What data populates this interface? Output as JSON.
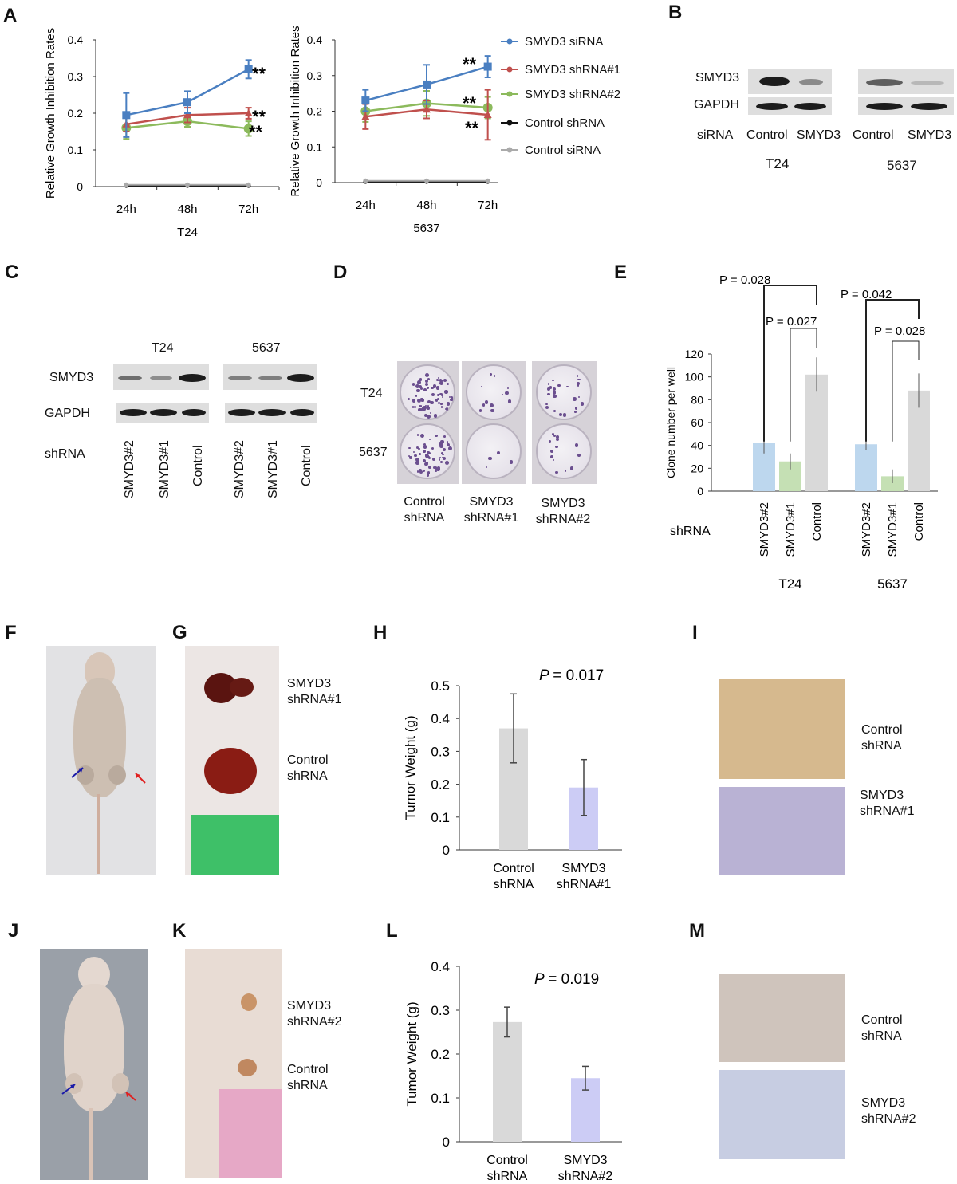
{
  "panel_letters": [
    "A",
    "B",
    "C",
    "D",
    "E",
    "F",
    "G",
    "H",
    "I",
    "J",
    "K",
    "L",
    "M"
  ],
  "chart_data": [
    {
      "id": "A_T24",
      "type": "line",
      "ylabel": "Relative Growth Inhibition Rates",
      "xlabel": "T24",
      "categories": [
        "24h",
        "48h",
        "72h"
      ],
      "ylim": [
        0,
        0.4
      ],
      "yticks": [
        "0",
        "0.1",
        "0.2",
        "0.3",
        "0.4"
      ],
      "series": [
        {
          "name": "SMYD3 siRNA",
          "values": [
            0.195,
            0.23,
            0.32
          ],
          "err": [
            0.06,
            0.03,
            0.025
          ],
          "color": "#4a7fc1"
        },
        {
          "name": "SMYD3 shRNA#1",
          "values": [
            0.17,
            0.195,
            0.2
          ],
          "err": [
            0.02,
            0.02,
            0.015
          ],
          "color": "#c0504d"
        },
        {
          "name": "SMYD3 shRNA#2",
          "values": [
            0.16,
            0.178,
            0.158
          ],
          "err": [
            0.03,
            0.015,
            0.02
          ],
          "color": "#8cba5c"
        },
        {
          "name": "Control shRNA",
          "values": [
            0.003,
            0.003,
            0.003
          ],
          "err": [
            0,
            0,
            0
          ],
          "color": "#111111"
        },
        {
          "name": "Control siRNA",
          "values": [
            0.005,
            0.005,
            0.005
          ],
          "err": [
            0,
            0,
            0
          ],
          "color": "#aaaaaa"
        }
      ],
      "annotations": [
        "**",
        "**",
        "**"
      ]
    },
    {
      "id": "A_5637",
      "type": "line",
      "ylabel": "Relative Growth Inhibition Rates",
      "xlabel": "5637",
      "categories": [
        "24h",
        "48h",
        "72h"
      ],
      "ylim": [
        0,
        0.4
      ],
      "yticks": [
        "0",
        "0.1",
        "0.2",
        "0.3",
        "0.4"
      ],
      "series": [
        {
          "name": "SMYD3 siRNA",
          "values": [
            0.23,
            0.275,
            0.325
          ],
          "err": [
            0.03,
            0.055,
            0.03
          ],
          "color": "#4a7fc1"
        },
        {
          "name": "SMYD3 shRNA#1",
          "values": [
            0.185,
            0.205,
            0.19
          ],
          "err": [
            0.035,
            0.025,
            0.07
          ],
          "color": "#c0504d"
        },
        {
          "name": "SMYD3 shRNA#2",
          "values": [
            0.2,
            0.222,
            0.21
          ],
          "err": [
            0.03,
            0.035,
            0.03
          ],
          "color": "#8cba5c"
        },
        {
          "name": "Control shRNA",
          "values": [
            0.003,
            0.003,
            0.003
          ],
          "err": [
            0,
            0,
            0
          ],
          "color": "#111111"
        },
        {
          "name": "Control siRNA",
          "values": [
            0.005,
            0.005,
            0.005
          ],
          "err": [
            0,
            0,
            0
          ],
          "color": "#aaaaaa"
        }
      ],
      "annotations": [
        "**",
        "**",
        "**"
      ]
    },
    {
      "id": "E",
      "type": "bar",
      "ylabel": "Clone number per well",
      "ylim": [
        0,
        120
      ],
      "yticks": [
        "0",
        "20",
        "40",
        "60",
        "80",
        "100",
        "120"
      ],
      "xprefix": "shRNA",
      "groups": [
        {
          "name": "T24",
          "categories": [
            "SMYD3#2",
            "SMYD3#1",
            "Control"
          ],
          "values": [
            42,
            26,
            102
          ],
          "err": [
            9,
            7,
            15
          ]
        },
        {
          "name": "5637",
          "categories": [
            "SMYD3#2",
            "SMYD3#1",
            "Control"
          ],
          "values": [
            41,
            13,
            88
          ],
          "err": [
            5,
            6,
            15
          ]
        }
      ],
      "colors": [
        "#bdd7ee",
        "#c5e0b4",
        "#d9d9d9"
      ],
      "pvalues": [
        "P = 0.028",
        "P = 0.027",
        "P = 0.042",
        "P = 0.028"
      ]
    },
    {
      "id": "H",
      "type": "bar",
      "ylabel": "Tumor Weight (g)",
      "ylim": [
        0,
        0.5
      ],
      "yticks": [
        "0",
        "0.1",
        "0.2",
        "0.3",
        "0.4",
        "0.5"
      ],
      "categories": [
        "Control shRNA",
        "SMYD3 shRNA#1"
      ],
      "values": [
        0.37,
        0.19
      ],
      "err": [
        0.105,
        0.085
      ],
      "colors": [
        "#d9d9d9",
        "#ccccf5"
      ],
      "pvalue": "= 0.017"
    },
    {
      "id": "L",
      "type": "bar",
      "ylabel": "Tumor Weight (g)",
      "ylim": [
        0,
        0.4
      ],
      "yticks": [
        "0",
        "0.1",
        "0.2",
        "0.3",
        "0.4"
      ],
      "categories": [
        "Control shRNA",
        "SMYD3 shRNA#2"
      ],
      "values": [
        0.273,
        0.145
      ],
      "err": [
        0.034,
        0.027
      ],
      "colors": [
        "#d9d9d9",
        "#ccccf5"
      ],
      "pvalue": "= 0.019"
    }
  ],
  "legend": [
    "SMYD3 siRNA",
    "SMYD3 shRNA#1",
    "SMYD3 shRNA#2",
    "Control shRNA",
    "Control siRNA"
  ],
  "panelB": {
    "rows": [
      "SMYD3",
      "GAPDH"
    ],
    "xprefix": "siRNA",
    "lanes": [
      "Control",
      "SMYD3",
      "Control",
      "SMYD3"
    ],
    "cells": [
      "T24",
      "5637"
    ]
  },
  "panelC": {
    "rows": [
      "SMYD3",
      "GAPDH"
    ],
    "xprefix": "shRNA",
    "cells": [
      "T24",
      "5637"
    ],
    "lanes": [
      "SMYD3#2",
      "SMYD3#1",
      "Control",
      "SMYD3#2",
      "SMYD3#1",
      "Control"
    ]
  },
  "panelD": {
    "rows": [
      "T24",
      "5637"
    ],
    "cols": [
      [
        "Control",
        "shRNA"
      ],
      [
        "SMYD3",
        "shRNA#1"
      ],
      [
        "SMYD3",
        "shRNA#2"
      ]
    ]
  },
  "panelG": {
    "labels": [
      [
        "SMYD3",
        "shRNA#1"
      ],
      [
        "Control",
        "shRNA"
      ]
    ]
  },
  "panelI": {
    "labels": [
      [
        "Control",
        "shRNA"
      ],
      [
        "SMYD3",
        "shRNA#1"
      ]
    ]
  },
  "panelK": {
    "labels": [
      [
        "SMYD3",
        "shRNA#2"
      ],
      [
        "Control",
        "shRNA"
      ]
    ]
  },
  "panelM": {
    "labels": [
      [
        "Control",
        "shRNA"
      ],
      [
        "SMYD3",
        "shRNA#2"
      ]
    ]
  }
}
